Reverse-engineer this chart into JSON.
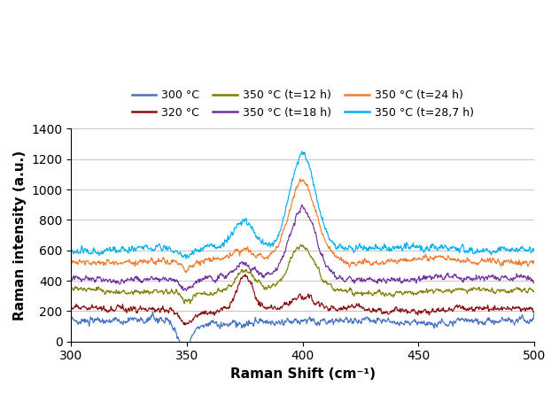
{
  "xlabel": "Raman Shift (cm⁻¹)",
  "ylabel": "Raman intensity (a.u.)",
  "xlim": [
    300,
    500
  ],
  "ylim": [
    0,
    1400
  ],
  "yticks": [
    0,
    200,
    400,
    600,
    800,
    1000,
    1200,
    1400
  ],
  "xticks": [
    300,
    350,
    400,
    450,
    500
  ],
  "legend": [
    {
      "label": "300 °C",
      "color": "#4472C4"
    },
    {
      "label": "320 °C",
      "color": "#8B1010"
    },
    {
      "label": "350 °C (t=12 h)",
      "color": "#7F7F00"
    },
    {
      "label": "350 °C (t=18 h)",
      "color": "#7030A0"
    },
    {
      "label": "350 °C (t=24 h)",
      "color": "#ED7D31"
    },
    {
      "label": "350 °C (t=28,7 h)",
      "color": "#00B0F0"
    }
  ],
  "bases": [
    130,
    210,
    330,
    415,
    530,
    610
  ],
  "noise_amp": [
    30,
    25,
    22,
    25,
    25,
    28
  ],
  "fine_amp": [
    15,
    12,
    10,
    12,
    12,
    14
  ],
  "p375_h": [
    0,
    220,
    130,
    75,
    60,
    180
  ],
  "p375_w": [
    4.5,
    3.5,
    4.0,
    4.0,
    4.0,
    4.5
  ],
  "p400_h": [
    0,
    80,
    300,
    470,
    530,
    650
  ],
  "p400_w": [
    5.5,
    5.0,
    5.5,
    5.5,
    6.0,
    5.5
  ],
  "dip350_h": [
    60,
    80,
    50,
    60,
    60,
    70
  ],
  "dip350_w": [
    3.0,
    2.5,
    2.5,
    2.5,
    2.5,
    3.0
  ],
  "seeds": [
    42,
    55,
    68,
    81,
    94,
    107
  ],
  "fine_seeds": [
    200,
    213,
    226,
    239,
    252,
    265
  ],
  "figsize": [
    6.31,
    4.45
  ],
  "dpi": 100
}
